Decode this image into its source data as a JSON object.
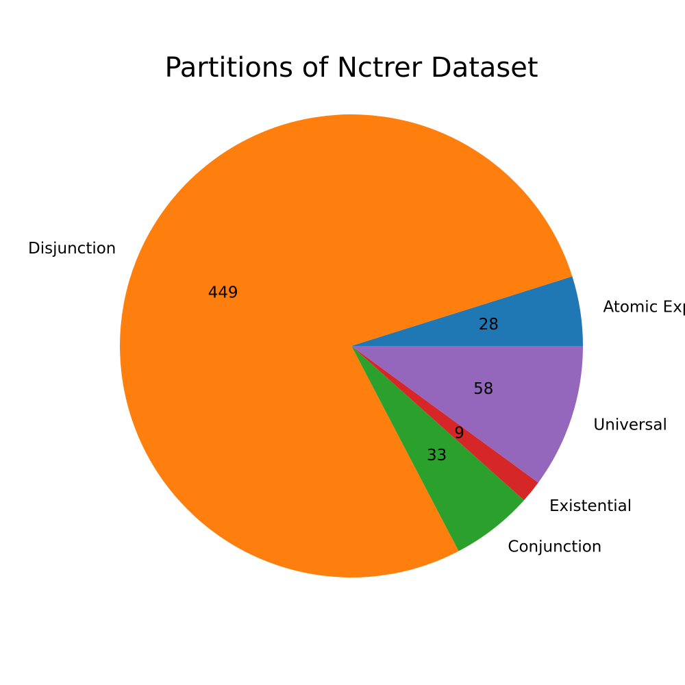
{
  "chart_data": {
    "type": "pie",
    "title": "Partitions of Nctrer Dataset",
    "slices": [
      {
        "label": "Atomic Expression",
        "value": 28,
        "color": "#1f77b4"
      },
      {
        "label": "Disjunction",
        "value": 449,
        "color": "#ff7f0e"
      },
      {
        "label": "Conjunction",
        "value": 33,
        "color": "#2ca02c"
      },
      {
        "label": "Existential",
        "value": 9,
        "color": "#d62728"
      },
      {
        "label": "Universal",
        "value": 58,
        "color": "#9467bd"
      }
    ],
    "start_angle_deg": 0,
    "direction": "counterclockwise",
    "value_labels": true
  }
}
